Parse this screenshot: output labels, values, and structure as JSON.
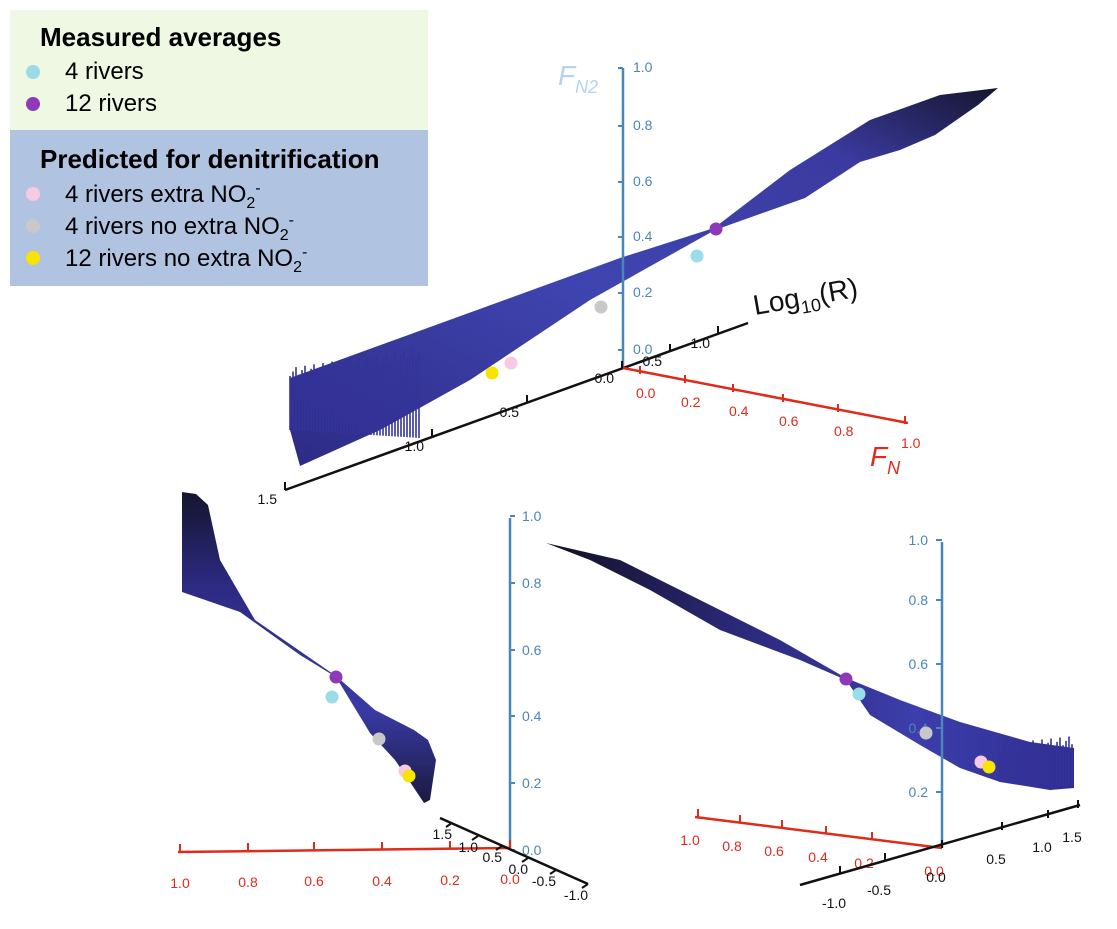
{
  "legend": {
    "measured_title": "Measured averages",
    "measured": [
      {
        "label": "4 rivers",
        "color": "#9adde8"
      },
      {
        "label": "12 rivers",
        "color": "#8e3ab8"
      }
    ],
    "predicted_title": "Predicted for denitrification",
    "predicted": [
      {
        "label": "4 rivers extra NO",
        "sub": "2",
        "sup": "-",
        "color": "#f7c9e2"
      },
      {
        "label": "4 rivers no extra NO",
        "sub": "2",
        "sup": "-",
        "color": "#c8c8c8"
      },
      {
        "label": "12 rivers no extra NO",
        "sub": "2",
        "sup": "-",
        "color": "#f7e400"
      }
    ]
  },
  "axis_labels": {
    "fn2": "F",
    "fn2_sub": "N2",
    "fn": "F",
    "fn_sub": "N",
    "logr": "Log",
    "logr_sub": "10",
    "logr_tail": "(R)"
  },
  "chart_data": {
    "type": "surface-3d",
    "axes": {
      "x": {
        "label": "Log10(R)",
        "ticks": [
          "-1.0",
          "-0.5",
          "0.0",
          "0.5",
          "1.0",
          "1.5"
        ]
      },
      "y": {
        "label": "FN",
        "ticks": [
          "0.0",
          "0.2",
          "0.4",
          "0.6",
          "0.8",
          "1.0"
        ]
      },
      "z": {
        "label": "FN2",
        "ticks": [
          "0.0",
          "0.2",
          "0.4",
          "0.6",
          "0.8",
          "1.0"
        ]
      }
    },
    "colors": {
      "surface": "#34339a",
      "surface_dark": "#16163a",
      "fn2_axis": "#4a86b8",
      "fn_axis": "#e02a1a",
      "logr_axis": "#111111"
    },
    "points": [
      {
        "name": "4 rivers",
        "color": "#9adde8"
      },
      {
        "name": "12 rivers",
        "color": "#8e3ab8"
      },
      {
        "name": "4 rivers extra NO2-",
        "color": "#f7c9e2"
      },
      {
        "name": "4 rivers no extra NO2-",
        "color": "#c8c8c8"
      },
      {
        "name": "12 rivers no extra NO2-",
        "color": "#f7e400"
      }
    ],
    "views": [
      "main",
      "bottom-left",
      "bottom-right"
    ]
  }
}
